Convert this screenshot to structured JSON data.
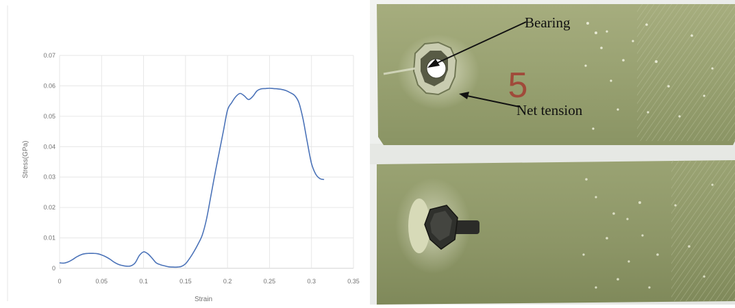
{
  "chart_data": {
    "type": "line",
    "title": "",
    "xlabel": "Strain",
    "ylabel": "Stress(GPa)",
    "xlim": [
      0,
      0.35
    ],
    "ylim": [
      0,
      0.07
    ],
    "grid": true,
    "x_ticks": [
      "0",
      "0.05",
      "0.1",
      "0.15",
      "0.2",
      "0.25",
      "0.3",
      "0.35"
    ],
    "y_ticks": [
      "0",
      "0.01",
      "0.02",
      "0.03",
      "0.04",
      "0.05",
      "0.06",
      "0.07"
    ],
    "series": [
      {
        "color": "#4a72b8",
        "points": [
          [
            0.0,
            0.0018
          ],
          [
            0.005,
            0.0017
          ],
          [
            0.01,
            0.0021
          ],
          [
            0.015,
            0.0028
          ],
          [
            0.02,
            0.0037
          ],
          [
            0.025,
            0.0044
          ],
          [
            0.03,
            0.0048
          ],
          [
            0.035,
            0.0049
          ],
          [
            0.04,
            0.0049
          ],
          [
            0.045,
            0.0048
          ],
          [
            0.05,
            0.0044
          ],
          [
            0.055,
            0.0038
          ],
          [
            0.06,
            0.003
          ],
          [
            0.065,
            0.002
          ],
          [
            0.07,
            0.0013
          ],
          [
            0.075,
            0.0009
          ],
          [
            0.08,
            0.0007
          ],
          [
            0.085,
            0.0008
          ],
          [
            0.09,
            0.0018
          ],
          [
            0.095,
            0.0042
          ],
          [
            0.1,
            0.0054
          ],
          [
            0.105,
            0.0048
          ],
          [
            0.11,
            0.0034
          ],
          [
            0.115,
            0.0018
          ],
          [
            0.12,
            0.0012
          ],
          [
            0.125,
            0.0008
          ],
          [
            0.13,
            0.0005
          ],
          [
            0.135,
            0.0004
          ],
          [
            0.14,
            0.0004
          ],
          [
            0.145,
            0.0006
          ],
          [
            0.15,
            0.0015
          ],
          [
            0.155,
            0.0033
          ],
          [
            0.16,
            0.0055
          ],
          [
            0.165,
            0.008
          ],
          [
            0.17,
            0.011
          ],
          [
            0.175,
            0.0162
          ],
          [
            0.18,
            0.0235
          ],
          [
            0.185,
            0.031
          ],
          [
            0.19,
            0.038
          ],
          [
            0.195,
            0.045
          ],
          [
            0.2,
            0.052
          ],
          [
            0.205,
            0.0545
          ],
          [
            0.21,
            0.0565
          ],
          [
            0.215,
            0.0575
          ],
          [
            0.22,
            0.0567
          ],
          [
            0.225,
            0.0555
          ],
          [
            0.23,
            0.0565
          ],
          [
            0.235,
            0.0583
          ],
          [
            0.24,
            0.059
          ],
          [
            0.245,
            0.0591
          ],
          [
            0.25,
            0.0592
          ],
          [
            0.255,
            0.0591
          ],
          [
            0.26,
            0.059
          ],
          [
            0.265,
            0.0588
          ],
          [
            0.27,
            0.0584
          ],
          [
            0.275,
            0.0577
          ],
          [
            0.28,
            0.0568
          ],
          [
            0.285,
            0.0545
          ],
          [
            0.29,
            0.049
          ],
          [
            0.295,
            0.0415
          ],
          [
            0.3,
            0.0345
          ],
          [
            0.305,
            0.031
          ],
          [
            0.31,
            0.0295
          ],
          [
            0.315,
            0.0292
          ]
        ]
      }
    ]
  },
  "photo": {
    "specimen_number": "5",
    "annotations": {
      "bearing": "Bearing",
      "net_tension": "Net tension"
    }
  }
}
